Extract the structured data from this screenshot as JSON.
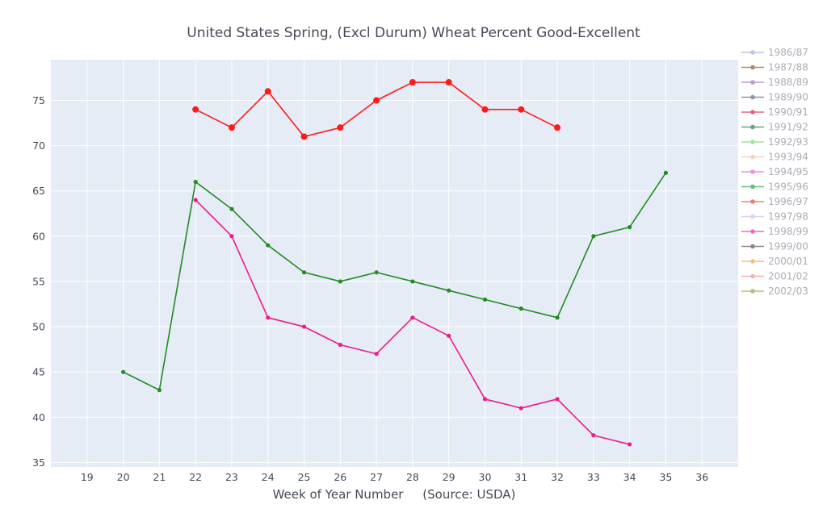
{
  "chart_data": {
    "type": "line",
    "title": "United States Spring, (Excl Durum) Wheat Percent Good-Excellent",
    "xlabel": "Week of Year Number     (Source: USDA)",
    "ylabel": "",
    "xlim": [
      18,
      37
    ],
    "ylim": [
      34.5,
      79.5
    ],
    "xticks": [
      19,
      20,
      21,
      22,
      23,
      24,
      25,
      26,
      27,
      28,
      29,
      30,
      31,
      32,
      33,
      34,
      35,
      36
    ],
    "yticks": [
      35,
      40,
      45,
      50,
      55,
      60,
      65,
      70,
      75
    ],
    "grid": true,
    "legend_position": "right",
    "plot_background": "#e5ecf6",
    "legend": [
      {
        "name": "1986/87",
        "color": "#b8c4e4"
      },
      {
        "name": "1987/88",
        "color": "#b08a66"
      },
      {
        "name": "1988/89",
        "color": "#b89ad8"
      },
      {
        "name": "1989/90",
        "color": "#8d96a6"
      },
      {
        "name": "1990/91",
        "color": "#e8608a"
      },
      {
        "name": "1991/92",
        "color": "#6aa27c"
      },
      {
        "name": "1992/93",
        "color": "#9ae69a"
      },
      {
        "name": "1993/94",
        "color": "#f4d2c2"
      },
      {
        "name": "1994/95",
        "color": "#ee8ee4"
      },
      {
        "name": "1995/96",
        "color": "#62c27a"
      },
      {
        "name": "1996/97",
        "color": "#ec8070"
      },
      {
        "name": "1997/98",
        "color": "#dad2ee"
      },
      {
        "name": "1998/99",
        "color": "#ee6ac2"
      },
      {
        "name": "1999/00",
        "color": "#8a8a8a"
      },
      {
        "name": "2000/01",
        "color": "#f2bc86"
      },
      {
        "name": "2001/02",
        "color": "#f4b2b2"
      },
      {
        "name": "2002/03",
        "color": "#b2c07a"
      }
    ],
    "series": [
      {
        "color": "#ff1a1a",
        "marker_size": 4,
        "x": [
          22,
          23,
          24,
          25,
          26,
          27,
          28,
          29,
          30,
          31,
          32
        ],
        "y": [
          74,
          72,
          76,
          71,
          72,
          75,
          77,
          77,
          74,
          74,
          72
        ]
      },
      {
        "color": "#228b22",
        "marker_size": 2.6,
        "x": [
          20,
          21,
          22,
          23,
          24,
          25,
          26,
          27,
          28,
          29,
          30,
          31,
          32,
          33,
          34,
          35
        ],
        "y": [
          45,
          43,
          66,
          63,
          59,
          56,
          55,
          56,
          55,
          54,
          53,
          52,
          51,
          60,
          61,
          67
        ]
      },
      {
        "color": "#ee1a8a",
        "marker_size": 2.6,
        "x": [
          22,
          23,
          24,
          25,
          26,
          27,
          28,
          29,
          30,
          31,
          32,
          33,
          34
        ],
        "y": [
          64,
          60,
          51,
          50,
          48,
          47,
          51,
          49,
          42,
          41,
          42,
          38,
          37
        ]
      }
    ]
  }
}
